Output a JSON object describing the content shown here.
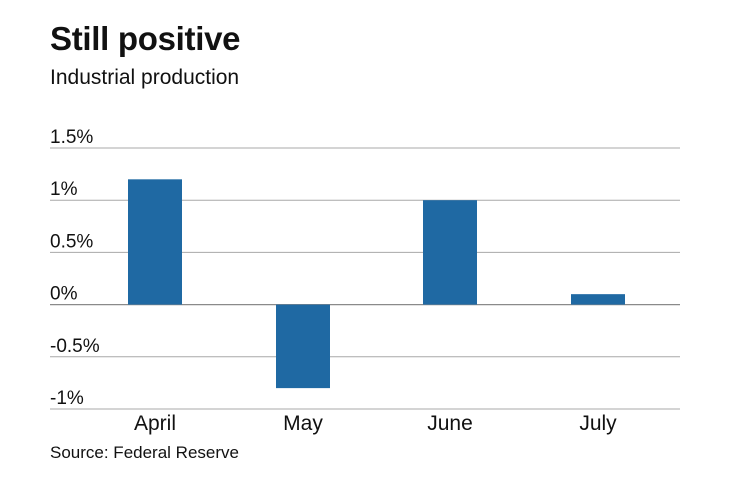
{
  "chart_data": {
    "type": "bar",
    "title": "Still positive",
    "subtitle": "Industrial production",
    "source": "Source: Federal Reserve",
    "categories": [
      "April",
      "May",
      "June",
      "July"
    ],
    "values": [
      1.2,
      -0.8,
      1.0,
      0.1
    ],
    "yticks": [
      {
        "value": 1.5,
        "label": "1.5%"
      },
      {
        "value": 1.0,
        "label": "1%"
      },
      {
        "value": 0.5,
        "label": "0.5%"
      },
      {
        "value": 0.0,
        "label": "0%"
      },
      {
        "value": -0.5,
        "label": "-0.5%"
      },
      {
        "value": -1.0,
        "label": "-1%"
      }
    ],
    "ylim": [
      -1.0,
      1.5
    ],
    "grid": true,
    "bar_color": "#1f69a3"
  }
}
